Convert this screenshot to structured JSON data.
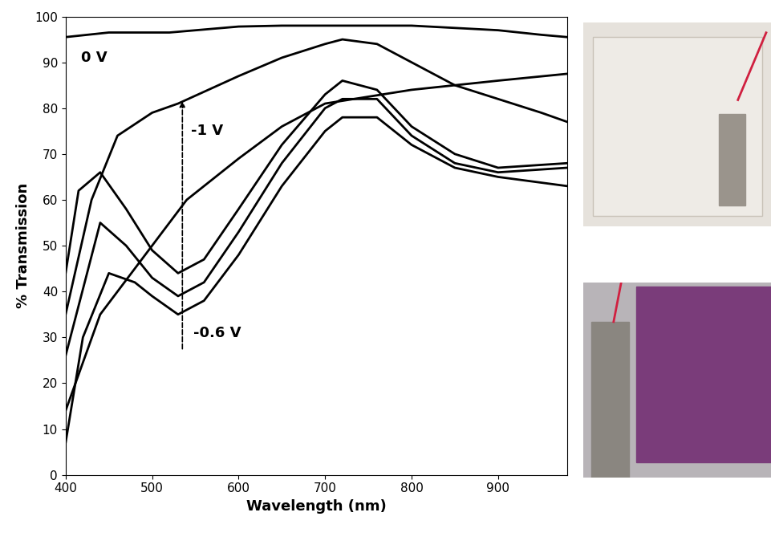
{
  "chart_data": {
    "type": "line",
    "x_label": "Wavelength (nm)",
    "y_label": "% Transmission",
    "xlim": [
      400,
      980
    ],
    "xticks": [
      400,
      500,
      600,
      700,
      800,
      900
    ],
    "ylim": [
      0,
      100
    ],
    "yticks": [
      0,
      10,
      20,
      30,
      40,
      50,
      60,
      70,
      80,
      90,
      100
    ],
    "grid": false,
    "annotations": [
      "0 V",
      "-1 V",
      "-0.6 V"
    ],
    "series": [
      {
        "color": "#000000",
        "x": [
          400,
          450,
          520,
          600,
          650,
          700,
          800,
          900,
          950,
          980
        ],
        "values": [
          95.5,
          96.5,
          96.5,
          97.8,
          98,
          98,
          98,
          97,
          96,
          95.5
        ]
      },
      {
        "color": "#000000",
        "x": [
          400,
          430,
          460,
          500,
          530,
          600,
          650,
          700,
          720,
          760,
          800,
          850,
          900,
          950,
          980
        ],
        "values": [
          35,
          60,
          74,
          79,
          81,
          87,
          91,
          94,
          95,
          94,
          90,
          85,
          82,
          79,
          77
        ]
      },
      {
        "color": "#000000",
        "x": [
          400,
          440,
          500,
          540,
          600,
          650,
          700,
          800,
          900,
          980
        ],
        "values": [
          14,
          35,
          50,
          60,
          69,
          76,
          81,
          84,
          86,
          87.5
        ]
      },
      {
        "color": "#000000",
        "x": [
          400,
          415,
          440,
          470,
          500,
          530,
          560,
          600,
          650,
          700,
          720,
          760,
          800,
          850,
          900,
          980
        ],
        "values": [
          44,
          62,
          66,
          58,
          49,
          44,
          47,
          58,
          72,
          83,
          86,
          84,
          76,
          70,
          67,
          68
        ]
      },
      {
        "color": "#000000",
        "x": [
          400,
          440,
          470,
          500,
          530,
          560,
          600,
          650,
          700,
          720,
          760,
          800,
          850,
          900,
          980
        ],
        "values": [
          26,
          55,
          50,
          43,
          39,
          42,
          53,
          68,
          80,
          82,
          82,
          74,
          68,
          66,
          67
        ]
      },
      {
        "color": "#000000",
        "x": [
          400,
          420,
          450,
          480,
          500,
          530,
          560,
          600,
          650,
          700,
          720,
          760,
          800,
          850,
          900,
          980
        ],
        "values": [
          7,
          30,
          44,
          42,
          39,
          35,
          38,
          48,
          63,
          75,
          78,
          78,
          72,
          67,
          65,
          63
        ]
      }
    ]
  }
}
